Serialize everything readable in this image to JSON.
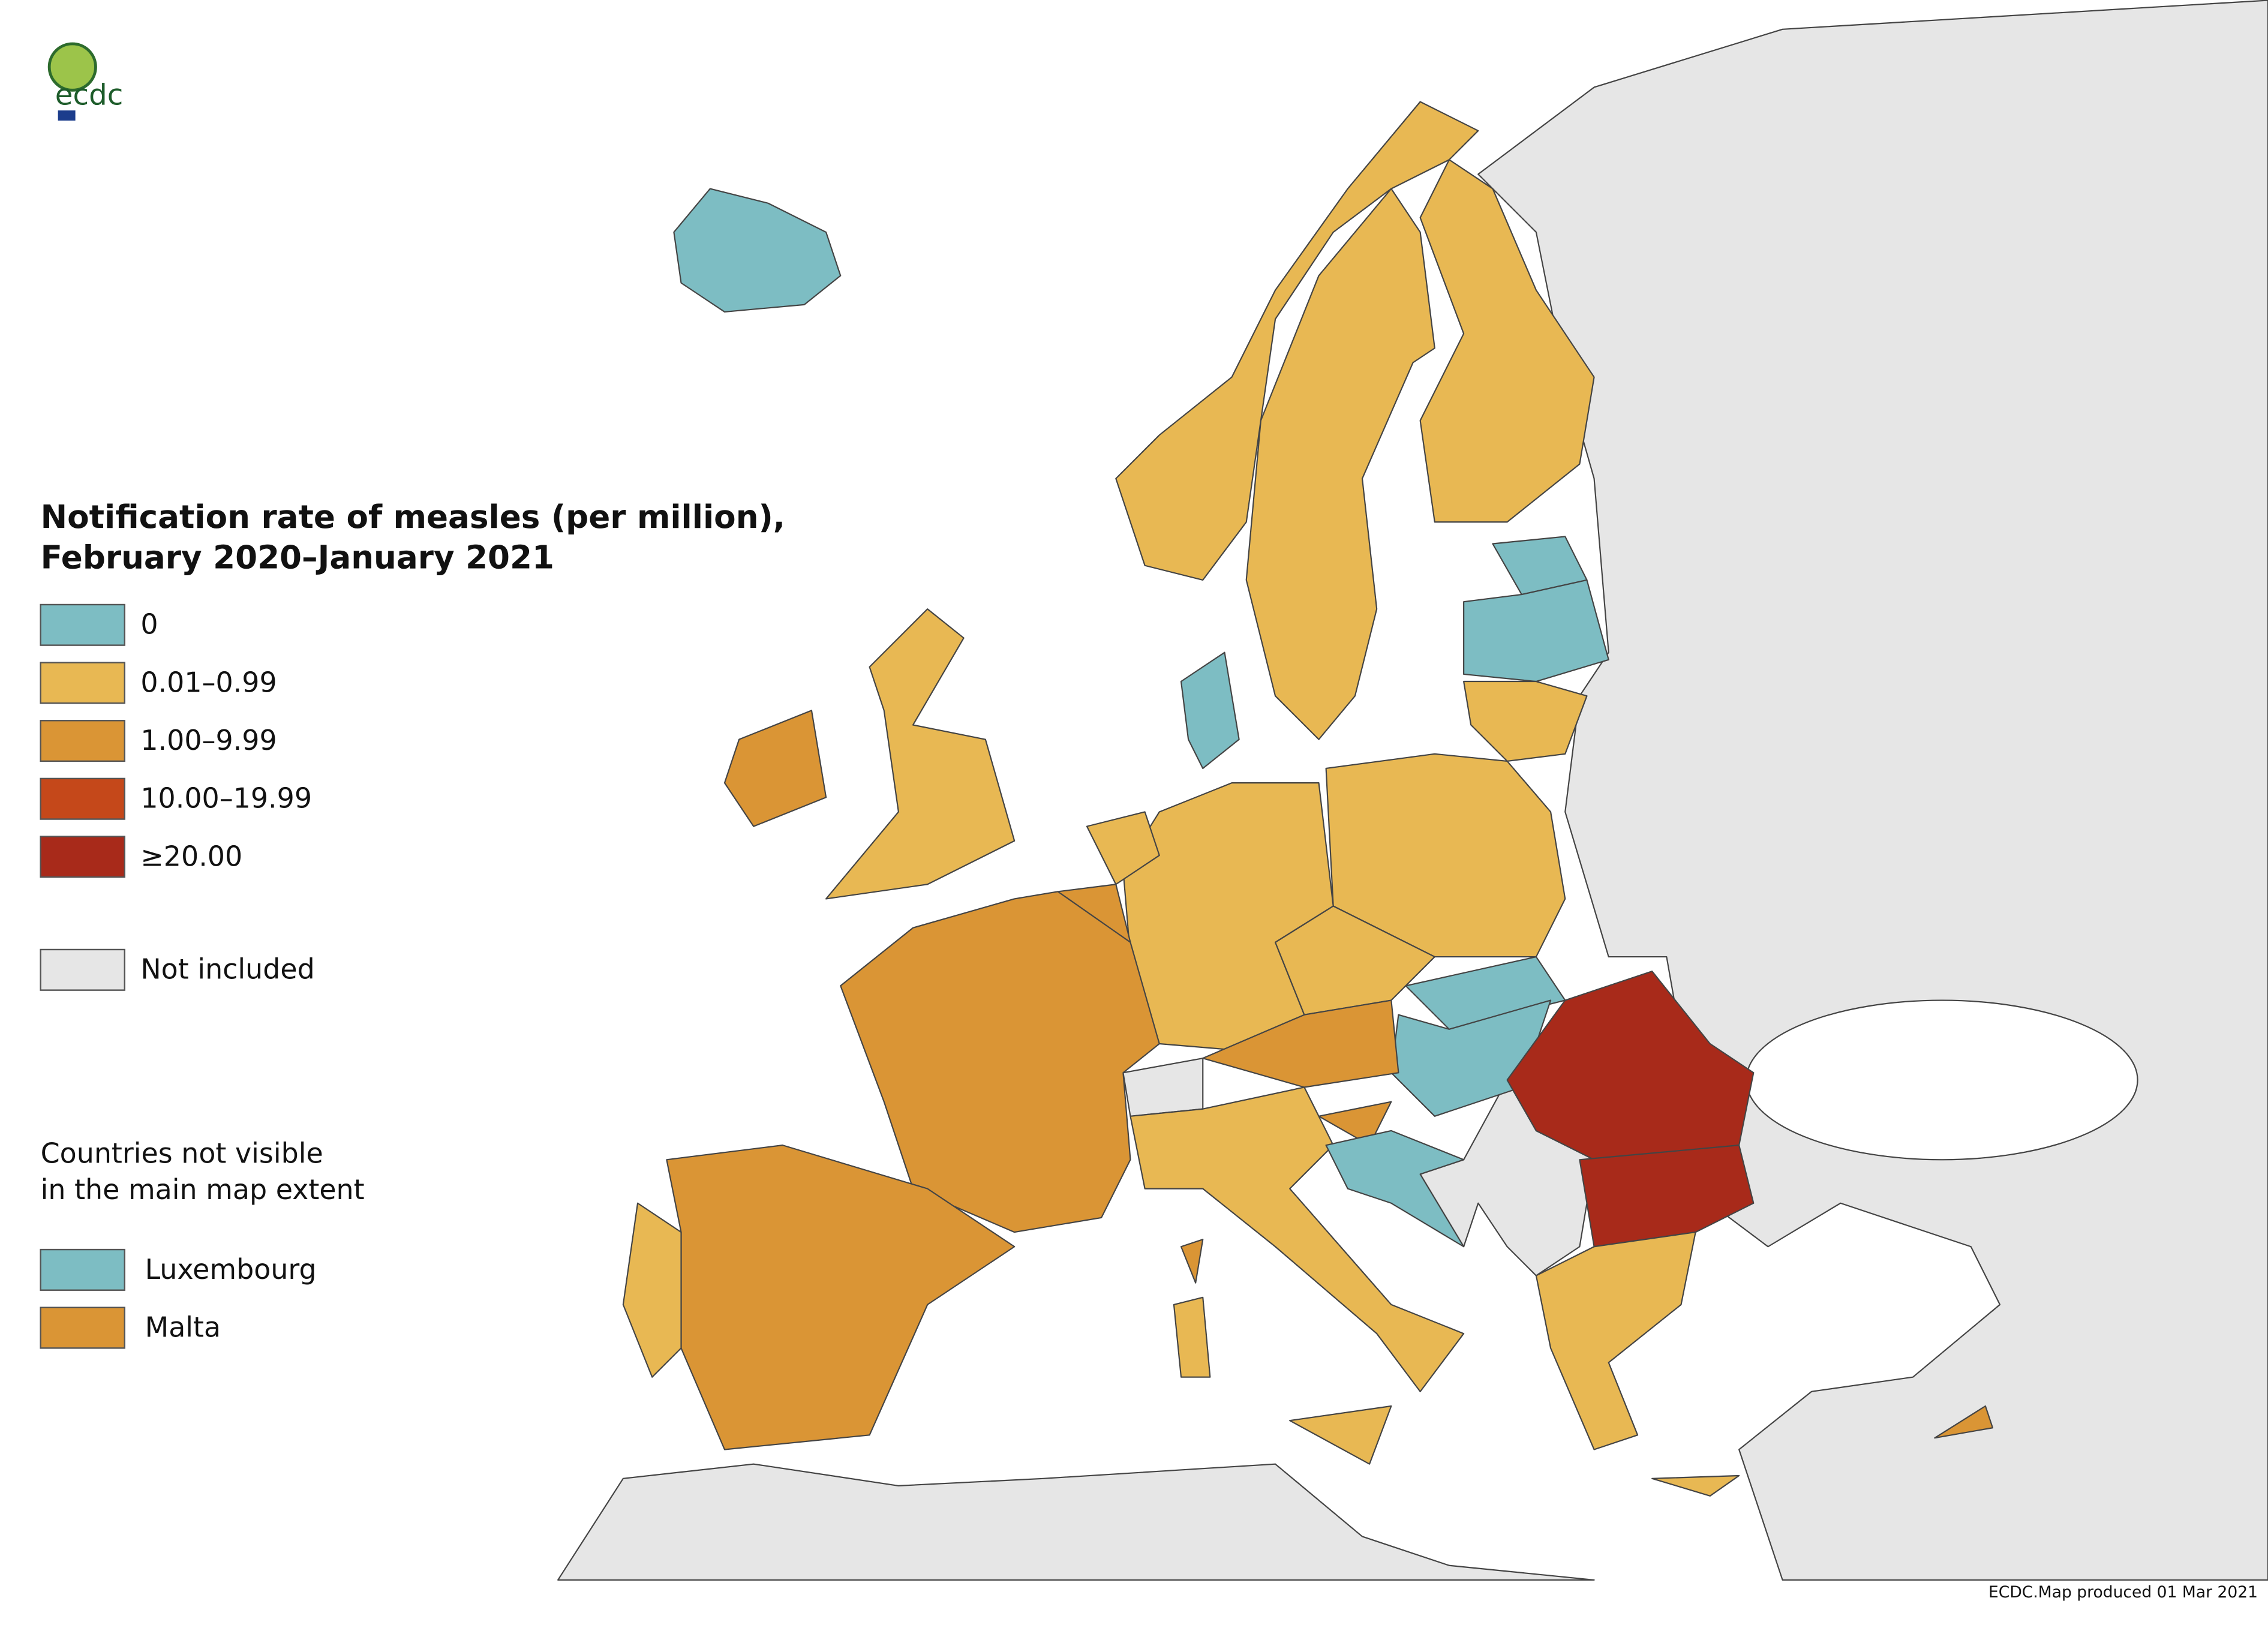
{
  "logo": "ecdc",
  "title": [
    "Notification rate of measles (per million),",
    "February 2020–January 2021"
  ],
  "legend": {
    "items": [
      {
        "label": "0",
        "color": "#7dbdc3"
      },
      {
        "label": "0.01–0.99",
        "color": "#e8b853"
      },
      {
        "label": "1.00–9.99",
        "color": "#da9535"
      },
      {
        "label": "10.00–19.99",
        "color": "#c5481a"
      },
      {
        "label": "≥20.00",
        "color": "#a82a1a"
      }
    ],
    "not_included": {
      "label": "Not included",
      "color": "#e6e6e6"
    }
  },
  "not_visible": {
    "heading": [
      "Countries not visible",
      "in the main map extent"
    ],
    "items": [
      {
        "label": "Luxembourg",
        "color": "#7dbdc3"
      },
      {
        "label": "Malta",
        "color": "#da9535"
      }
    ]
  },
  "credit": "ECDC.Map produced 01 Mar 2021"
}
